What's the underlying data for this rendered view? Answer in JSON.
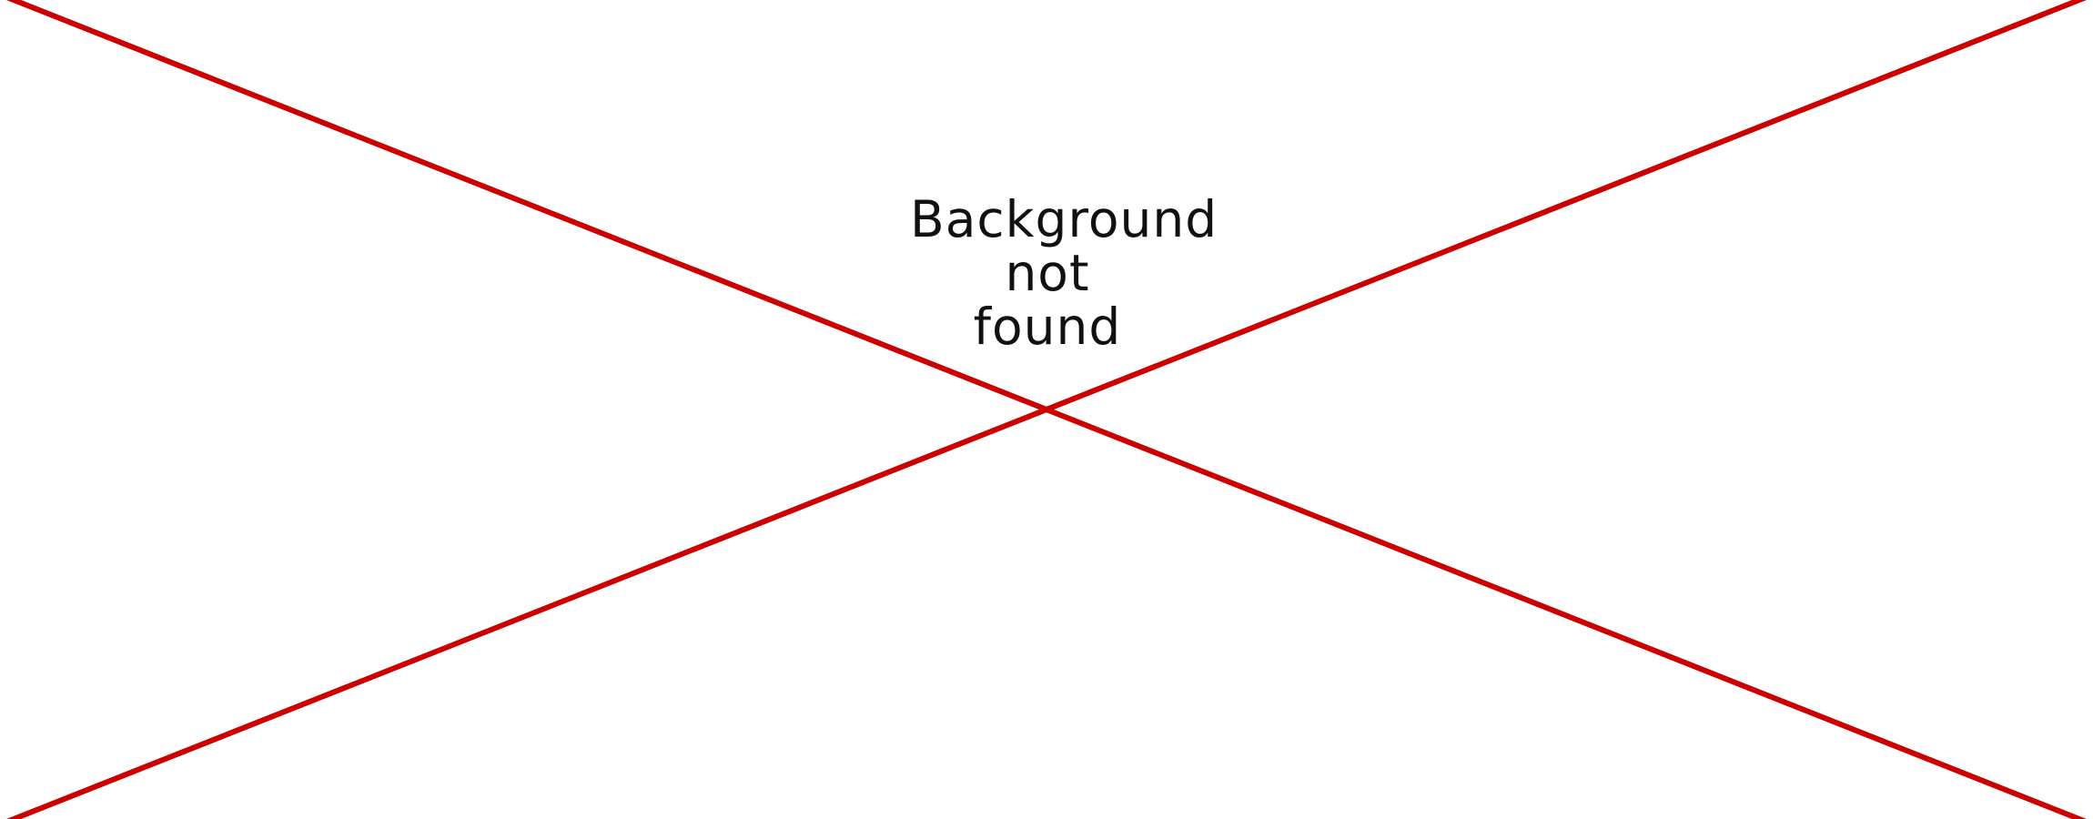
{
  "placeholder": {
    "lines": [
      "Background",
      "not",
      "found"
    ],
    "line_color": "#cc0000",
    "text_color": "#111111",
    "background_color": "#ffffff"
  }
}
